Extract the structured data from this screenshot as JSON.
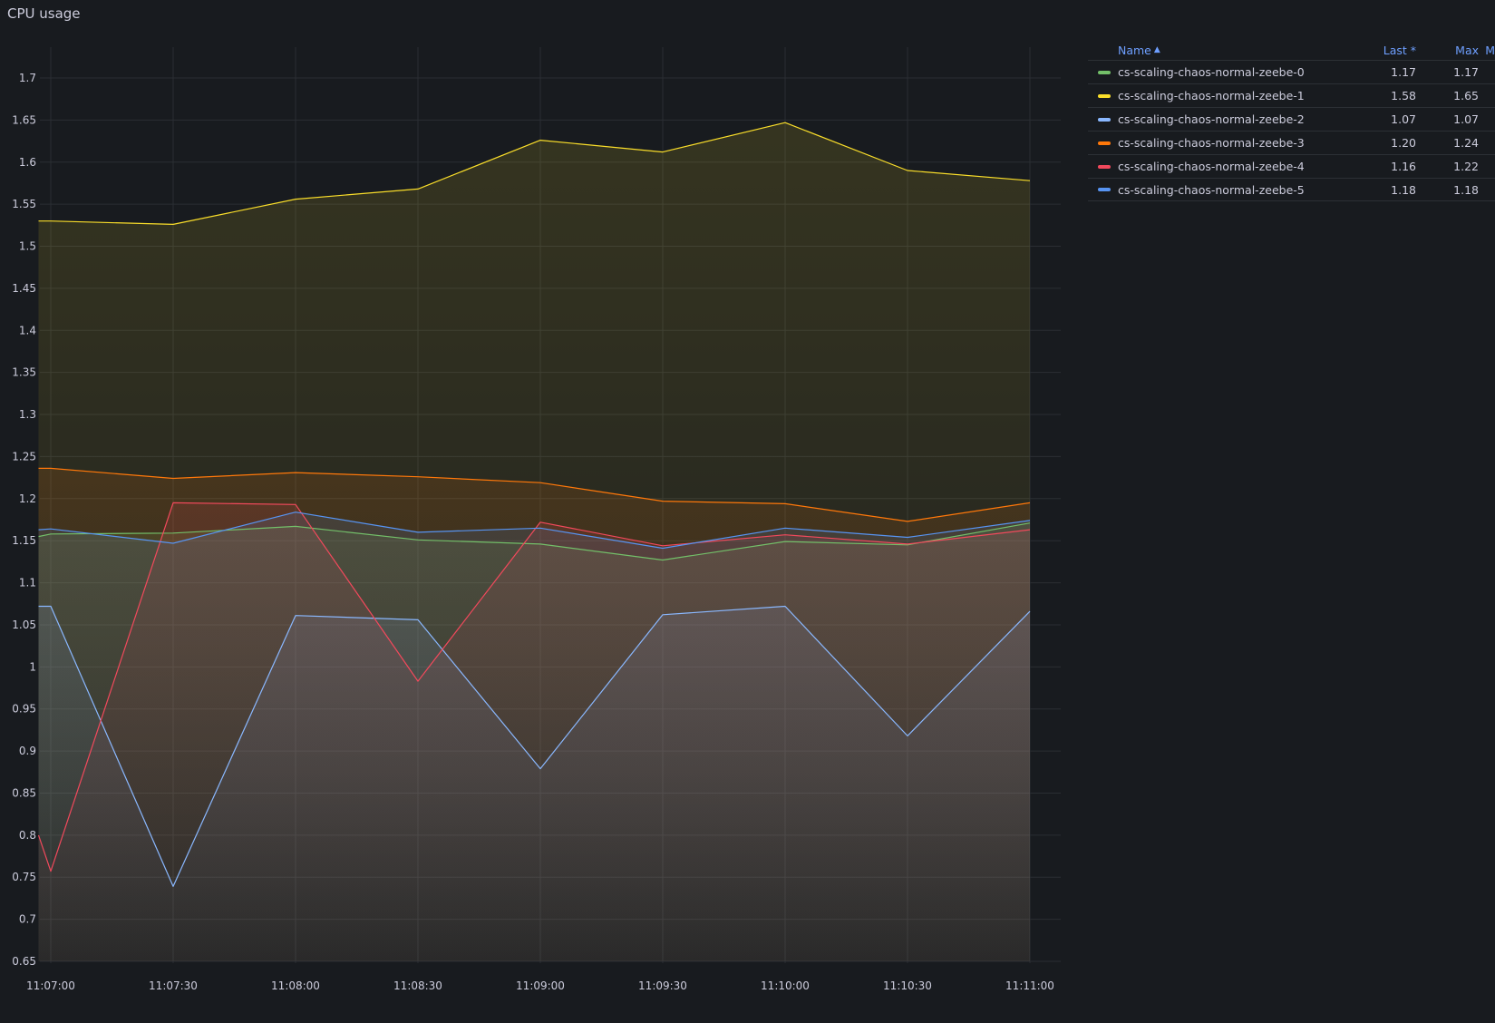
{
  "panel": {
    "title": "CPU usage"
  },
  "legend": {
    "headers": {
      "name": "Name",
      "last": "Last *",
      "max": "Max",
      "more": "M"
    },
    "sort_icon": "sort-ascending-icon",
    "rows": [
      {
        "name": "cs-scaling-chaos-normal-zeebe-0",
        "last": "1.17",
        "max": "1.17",
        "color": "#73bf69"
      },
      {
        "name": "cs-scaling-chaos-normal-zeebe-1",
        "last": "1.58",
        "max": "1.65",
        "color": "#fade2a"
      },
      {
        "name": "cs-scaling-chaos-normal-zeebe-2",
        "last": "1.07",
        "max": "1.07",
        "color": "#8ab8ff"
      },
      {
        "name": "cs-scaling-chaos-normal-zeebe-3",
        "last": "1.20",
        "max": "1.24",
        "color": "#ff780a"
      },
      {
        "name": "cs-scaling-chaos-normal-zeebe-4",
        "last": "1.16",
        "max": "1.22",
        "color": "#f2495c"
      },
      {
        "name": "cs-scaling-chaos-normal-zeebe-5",
        "last": "1.18",
        "max": "1.18",
        "color": "#5794f2"
      }
    ]
  },
  "chart_data": {
    "type": "area",
    "title": "CPU usage",
    "ylim": [
      0.65,
      1.72
    ],
    "yticks": [
      "0.65",
      "0.7",
      "0.75",
      "0.8",
      "0.85",
      "0.9",
      "0.95",
      "1",
      "1.05",
      "1.1",
      "1.15",
      "1.2",
      "1.25",
      "1.3",
      "1.35",
      "1.4",
      "1.45",
      "1.5",
      "1.55",
      "1.6",
      "1.65",
      "1.7"
    ],
    "xlim": [
      "11:06:57",
      "11:11:12"
    ],
    "xticks": [
      "11:07:00",
      "11:07:30",
      "11:08:00",
      "11:08:30",
      "11:09:00",
      "11:09:30",
      "11:10:00",
      "11:10:30",
      "11:11:00"
    ],
    "grid": true,
    "legend_position": "right",
    "series": [
      {
        "name": "cs-scaling-chaos-normal-zeebe-0",
        "color": "#73bf69",
        "x": [
          "11:06:57",
          "11:07:00",
          "11:07:30",
          "11:08:00",
          "11:08:30",
          "11:09:00",
          "11:09:30",
          "11:10:00",
          "11:10:30",
          "11:11:00"
        ],
        "y": [
          1.155,
          1.158,
          1.159,
          1.167,
          1.151,
          1.146,
          1.127,
          1.149,
          1.145,
          1.171
        ]
      },
      {
        "name": "cs-scaling-chaos-normal-zeebe-1",
        "color": "#fade2a",
        "x": [
          "11:06:57",
          "11:07:00",
          "11:07:30",
          "11:08:00",
          "11:08:30",
          "11:09:00",
          "11:09:30",
          "11:10:00",
          "11:10:30",
          "11:11:00"
        ],
        "y": [
          1.53,
          1.53,
          1.526,
          1.556,
          1.568,
          1.626,
          1.612,
          1.647,
          1.59,
          1.578
        ]
      },
      {
        "name": "cs-scaling-chaos-normal-zeebe-2",
        "color": "#8ab8ff",
        "x": [
          "11:06:57",
          "11:07:00",
          "11:07:30",
          "11:08:00",
          "11:08:30",
          "11:09:00",
          "11:09:30",
          "11:10:00",
          "11:10:30",
          "11:11:00"
        ],
        "y": [
          1.072,
          1.072,
          0.739,
          1.061,
          1.056,
          0.879,
          1.062,
          1.072,
          0.918,
          1.066
        ]
      },
      {
        "name": "cs-scaling-chaos-normal-zeebe-3",
        "color": "#ff780a",
        "x": [
          "11:06:57",
          "11:07:00",
          "11:07:30",
          "11:08:00",
          "11:08:30",
          "11:09:00",
          "11:09:30",
          "11:10:00",
          "11:10:30",
          "11:11:00"
        ],
        "y": [
          1.236,
          1.236,
          1.224,
          1.231,
          1.226,
          1.219,
          1.197,
          1.194,
          1.173,
          1.195
        ]
      },
      {
        "name": "cs-scaling-chaos-normal-zeebe-4",
        "color": "#f2495c",
        "x": [
          "11:06:57",
          "11:07:00",
          "11:07:30",
          "11:08:00",
          "11:08:30",
          "11:09:00",
          "11:09:30",
          "11:10:00",
          "11:10:30",
          "11:11:00"
        ],
        "y": [
          0.8,
          0.757,
          1.195,
          1.193,
          0.983,
          1.172,
          1.144,
          1.157,
          1.146,
          1.163
        ]
      },
      {
        "name": "cs-scaling-chaos-normal-zeebe-5",
        "color": "#5794f2",
        "x": [
          "11:06:57",
          "11:07:00",
          "11:07:30",
          "11:08:00",
          "11:08:30",
          "11:09:00",
          "11:09:30",
          "11:10:00",
          "11:10:30",
          "11:11:00"
        ],
        "y": [
          1.163,
          1.164,
          1.147,
          1.184,
          1.16,
          1.165,
          1.141,
          1.165,
          1.154,
          1.174
        ]
      }
    ]
  }
}
